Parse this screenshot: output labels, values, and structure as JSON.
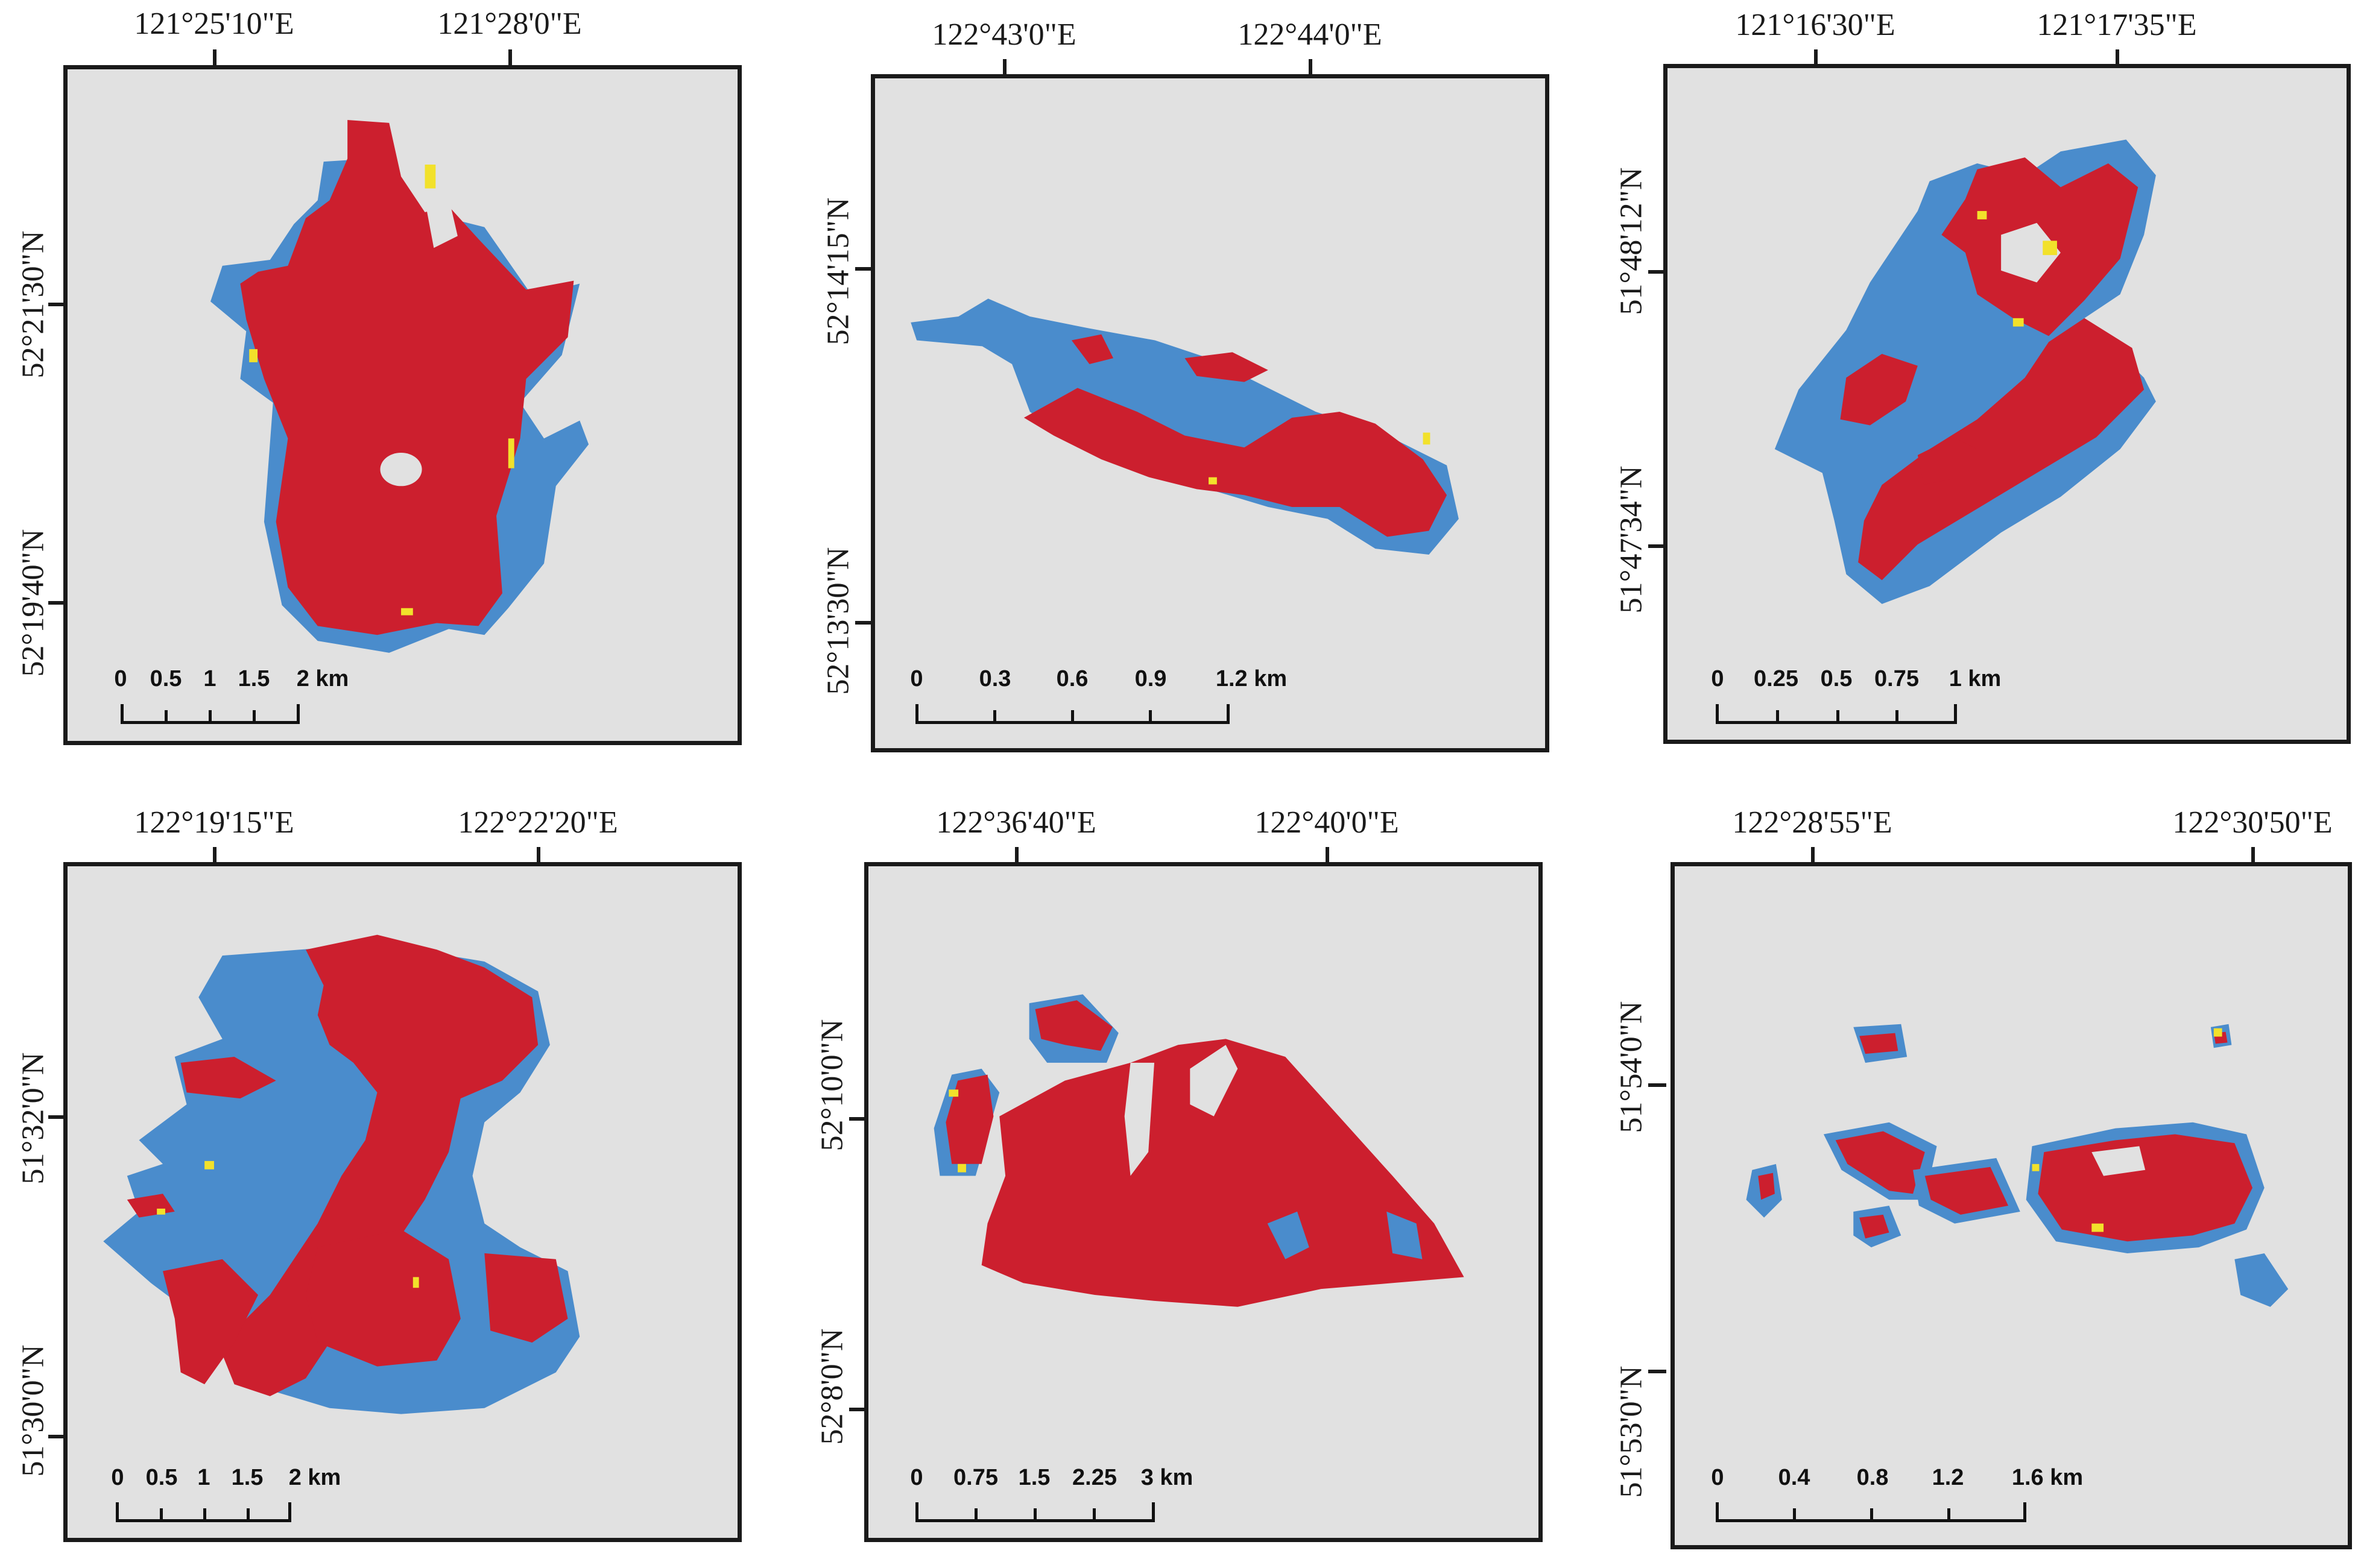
{
  "colors": {
    "main_class": "#cc1f2e",
    "secondary_class": "#4a8ccc",
    "minor_class": "#f2e12b",
    "background": "#e1e1e1"
  },
  "panels": [
    {
      "lon_labels": [
        "121°25'10\"E",
        "121°28'0\"E"
      ],
      "lat_labels": [
        "52°21'30\"N",
        "52°19'40\"N"
      ],
      "scale_labels": [
        "0",
        "0.5",
        "1",
        "1.5",
        "2 km"
      ]
    },
    {
      "lon_labels": [
        "122°43'0\"E",
        "122°44'0\"E"
      ],
      "lat_labels": [
        "52°14'15\"N",
        "52°13'30\"N"
      ],
      "scale_labels": [
        "0",
        "0.3",
        "0.6",
        "0.9",
        "1.2 km"
      ]
    },
    {
      "lon_labels": [
        "121°16'30\"E",
        "121°17'35\"E"
      ],
      "lat_labels": [
        "51°48'12\"N",
        "51°47'34\"N"
      ],
      "scale_labels": [
        "0",
        "0.25",
        "0.5",
        "0.75",
        "1 km"
      ]
    },
    {
      "lon_labels": [
        "122°19'15\"E",
        "122°22'20\"E"
      ],
      "lat_labels": [
        "51°32'0\"N",
        "51°30'0\"N"
      ],
      "scale_labels": [
        "0",
        "0.5",
        "1",
        "1.5",
        "2 km"
      ]
    },
    {
      "lon_labels": [
        "122°36'40\"E",
        "122°40'0\"E"
      ],
      "lat_labels": [
        "52°10'0\"N",
        "52°8'0\"N"
      ],
      "scale_labels": [
        "0",
        "0.75",
        "1.5",
        "2.25",
        "3 km"
      ]
    },
    {
      "lon_labels": [
        "122°28'55\"E",
        "122°30'50\"E"
      ],
      "lat_labels": [
        "51°54'0\"N",
        "51°53'0\"N"
      ],
      "scale_labels": [
        "0",
        "0.4",
        "0.8",
        "1.2",
        "1.6 km"
      ]
    }
  ]
}
